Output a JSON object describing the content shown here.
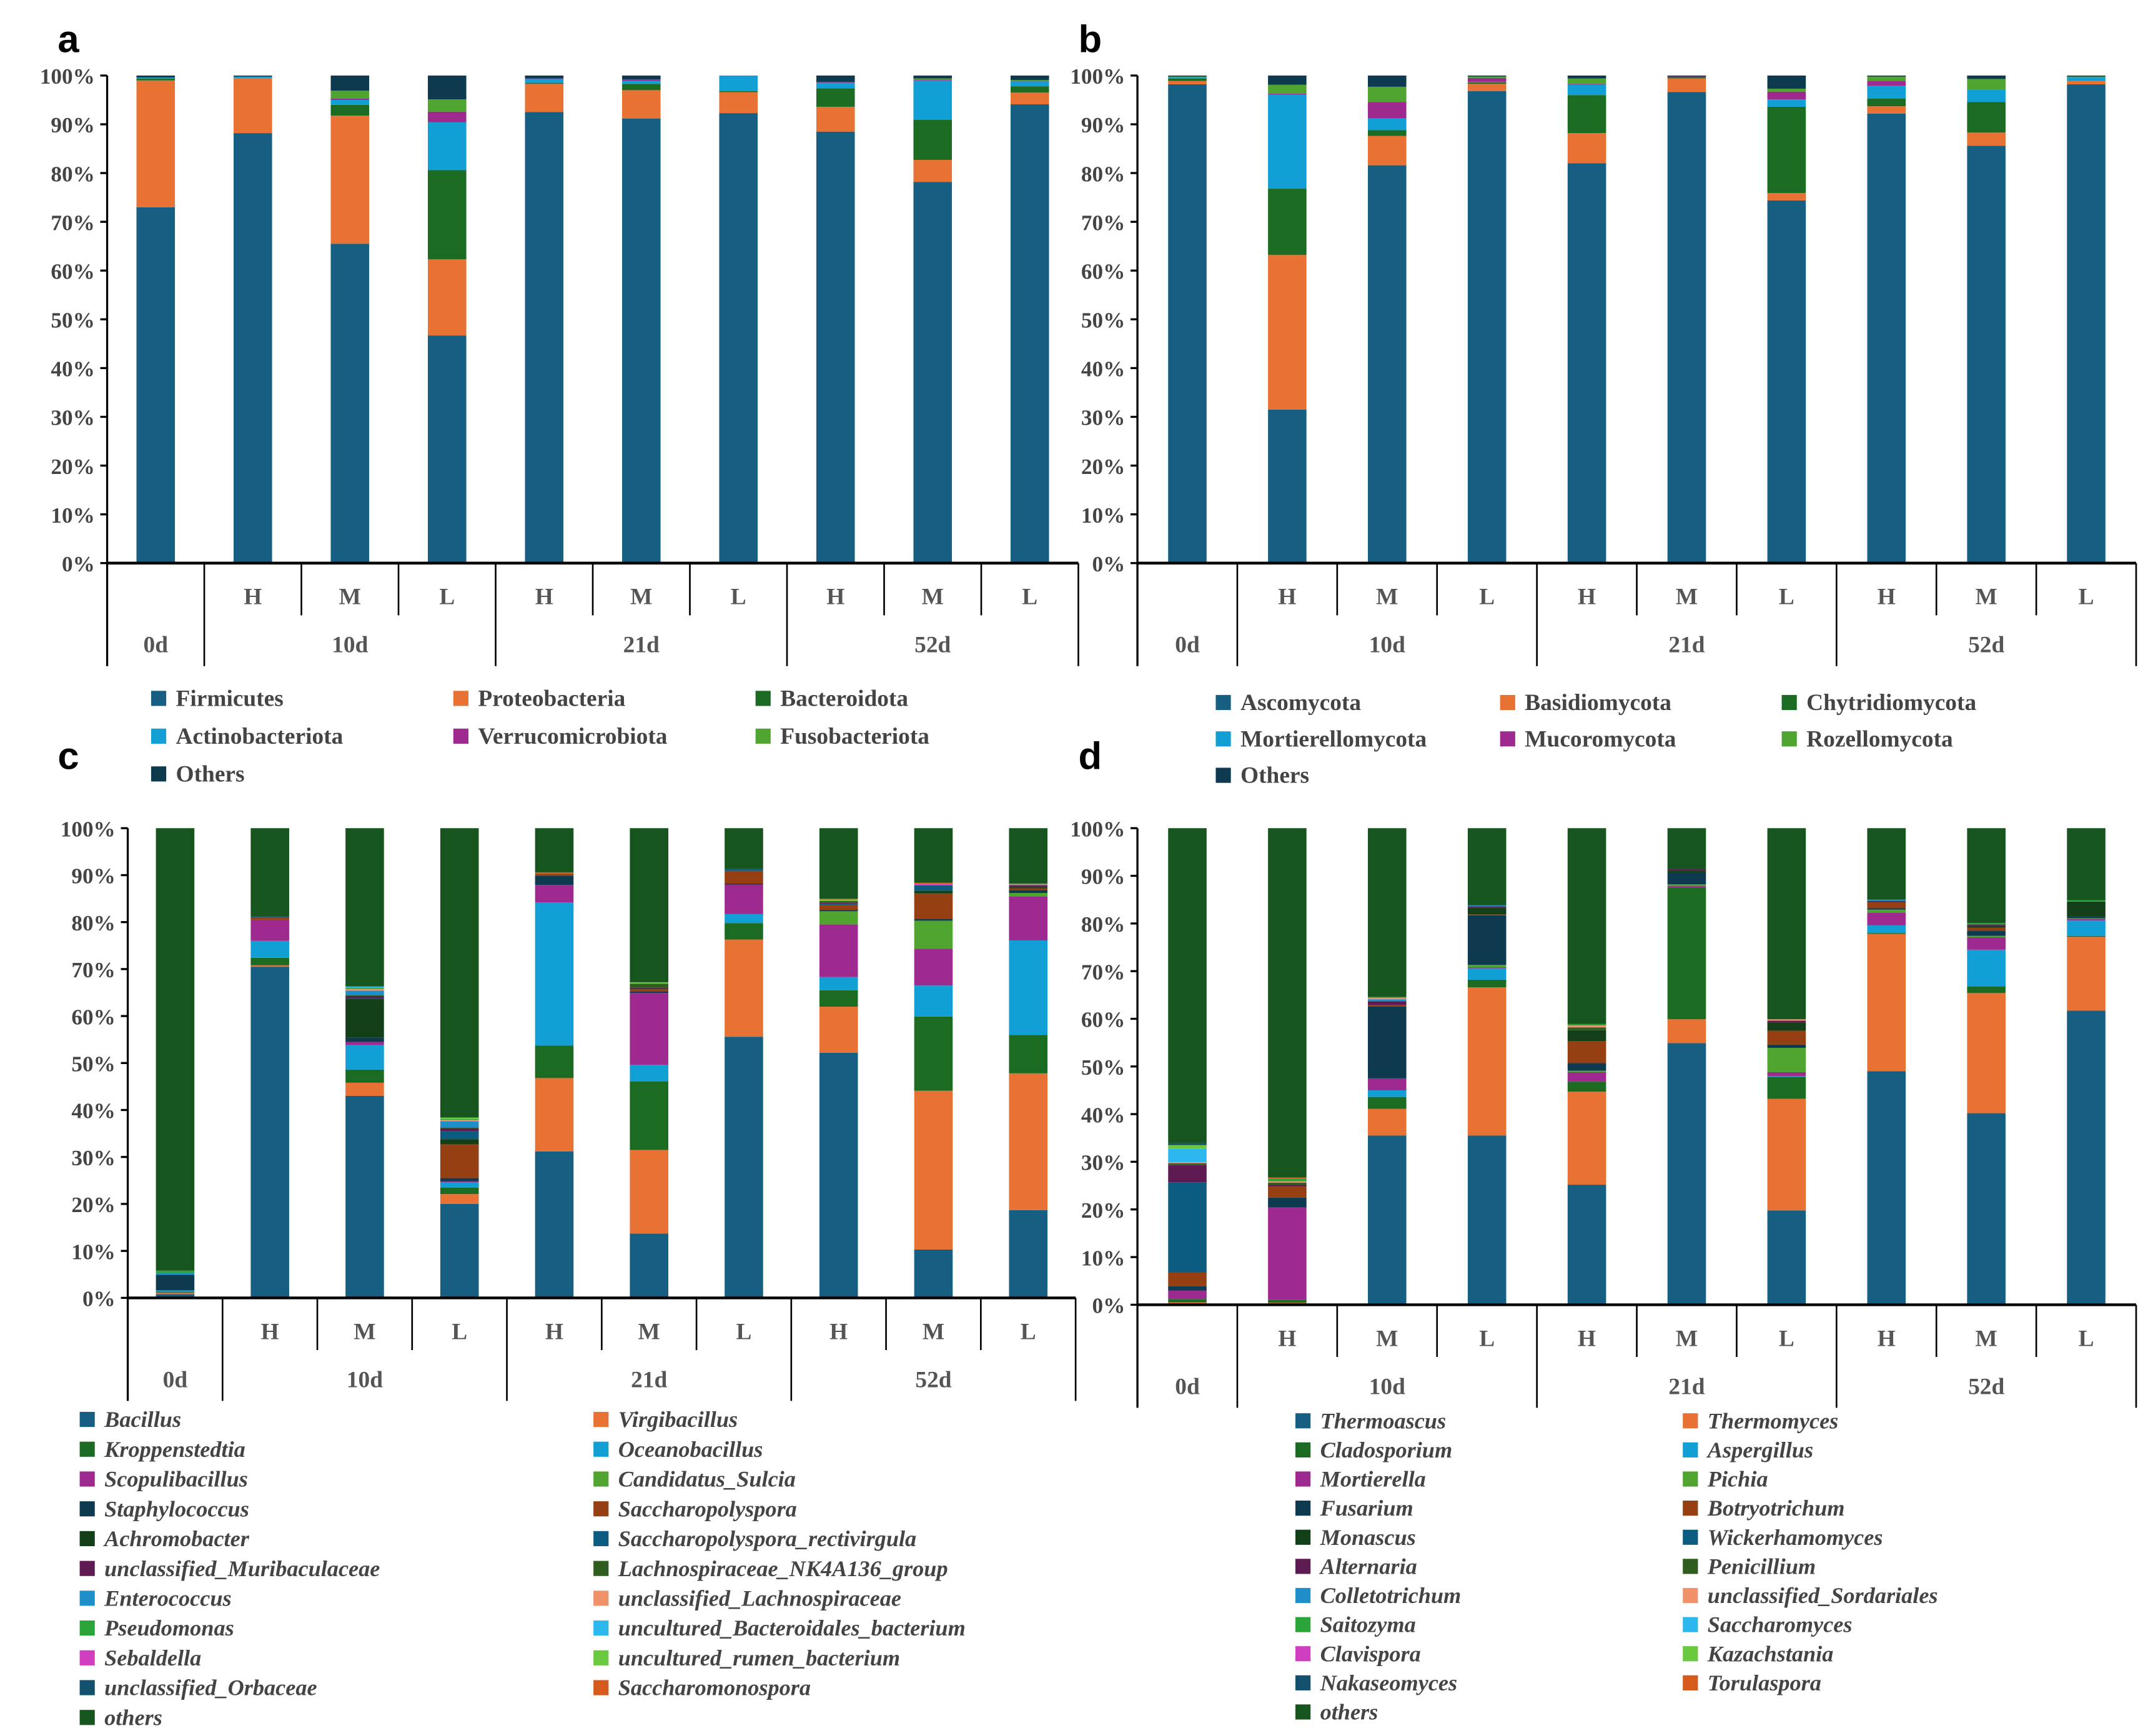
{
  "chart_data": [
    {
      "panel_label": "a",
      "type": "bar",
      "stacked": true,
      "ylim": [
        0,
        100
      ],
      "yticks": [
        "0%",
        "10%",
        "20%",
        "30%",
        "40%",
        "50%",
        "60%",
        "70%",
        "80%",
        "90%",
        "100%"
      ],
      "groups": [
        {
          "label": "0d",
          "subs": [
            ""
          ]
        },
        {
          "label": "10d",
          "subs": [
            "H",
            "M",
            "L"
          ]
        },
        {
          "label": "21d",
          "subs": [
            "H",
            "M",
            "L"
          ]
        },
        {
          "label": "52d",
          "subs": [
            "H",
            "M",
            "L"
          ]
        }
      ],
      "legend_italic": false,
      "series": [
        {
          "name": "Firmicutes",
          "color": "#175f82",
          "values": [
            73,
            88.2,
            65.5,
            46.7,
            92.5,
            91.2,
            92.3,
            88.5,
            78.2,
            94.1
          ]
        },
        {
          "name": "Proteobacteria",
          "color": "#e87233",
          "values": [
            26,
            11.3,
            26.3,
            15.6,
            5.8,
            5.8,
            4.3,
            5.1,
            4.5,
            2.4
          ]
        },
        {
          "name": "Bacteroidota",
          "color": "#1b6b23",
          "values": [
            0.4,
            0,
            2.2,
            18.3,
            0.2,
            1.3,
            0.2,
            3.8,
            8.2,
            1.3
          ]
        },
        {
          "name": "Actinobacteriota",
          "color": "#119fd6",
          "values": [
            0.2,
            0.3,
            1,
            9.8,
            0.8,
            0.6,
            3.2,
            1.1,
            8.1,
            1
          ]
        },
        {
          "name": "Verrucomicrobiota",
          "color": "#9f2a8f",
          "values": [
            0,
            0,
            0.3,
            2.2,
            0.1,
            0.3,
            0,
            0.2,
            0.2,
            0.1
          ]
        },
        {
          "name": "Fusobacteriota",
          "color": "#4fa52f",
          "values": [
            0,
            0,
            1.6,
            2.5,
            0,
            0,
            0,
            0,
            0.2,
            0.2
          ]
        },
        {
          "name": "Others",
          "color": "#0e3a50",
          "values": [
            0.4,
            0.2,
            3.1,
            4.9,
            0.6,
            0.8,
            0,
            1.3,
            0.6,
            0.9
          ]
        }
      ]
    },
    {
      "panel_label": "b",
      "type": "bar",
      "stacked": true,
      "ylim": [
        0,
        100
      ],
      "yticks": [
        "0%",
        "10%",
        "20%",
        "30%",
        "40%",
        "50%",
        "60%",
        "70%",
        "80%",
        "90%",
        "100%"
      ],
      "groups": [
        {
          "label": "0d",
          "subs": [
            ""
          ]
        },
        {
          "label": "10d",
          "subs": [
            "H",
            "M",
            "L"
          ]
        },
        {
          "label": "21d",
          "subs": [
            "H",
            "M",
            "L"
          ]
        },
        {
          "label": "52d",
          "subs": [
            "H",
            "M",
            "L"
          ]
        }
      ],
      "legend_italic": false,
      "series": [
        {
          "name": "Ascomycota",
          "color": "#175f82",
          "values": [
            98.2,
            31.5,
            81.6,
            96.8,
            82,
            96.6,
            74.4,
            92.2,
            85.6,
            98.2
          ]
        },
        {
          "name": "Basidiomycota",
          "color": "#e87233",
          "values": [
            0.7,
            31.7,
            6,
            1.5,
            6.2,
            2.8,
            1.5,
            1.5,
            2.7,
            0.7
          ]
        },
        {
          "name": "Chytridiomycota",
          "color": "#1b6b23",
          "values": [
            0.5,
            13.6,
            1.2,
            0.3,
            7.8,
            0.2,
            17.7,
            1.6,
            6.3,
            0
          ]
        },
        {
          "name": "Mortierellomycota",
          "color": "#119fd6",
          "values": [
            0.2,
            19.3,
            2.4,
            0.1,
            2.1,
            0,
            1.5,
            2.6,
            2.5,
            0.7
          ]
        },
        {
          "name": "Mucoromycota",
          "color": "#9f2a8f",
          "values": [
            0,
            0.2,
            3.4,
            0.8,
            0.2,
            0.2,
            1.6,
            1,
            0,
            0
          ]
        },
        {
          "name": "Rozellomycota",
          "color": "#4fa52f",
          "values": [
            0.2,
            1.8,
            3.1,
            0.3,
            1.1,
            0,
            0.6,
            0.9,
            2.2,
            0.2
          ]
        },
        {
          "name": "Others",
          "color": "#0e3a50",
          "values": [
            0.2,
            1.9,
            2.3,
            0.2,
            0.6,
            0.2,
            2.7,
            0.2,
            0.7,
            0.2
          ]
        }
      ]
    },
    {
      "panel_label": "c",
      "type": "bar",
      "stacked": true,
      "ylim": [
        0,
        100
      ],
      "yticks": [
        "0%",
        "10%",
        "20%",
        "30%",
        "40%",
        "50%",
        "60%",
        "70%",
        "80%",
        "90%",
        "100%"
      ],
      "groups": [
        {
          "label": "0d",
          "subs": [
            ""
          ]
        },
        {
          "label": "10d",
          "subs": [
            "H",
            "M",
            "L"
          ]
        },
        {
          "label": "21d",
          "subs": [
            "H",
            "M",
            "L"
          ]
        },
        {
          "label": "52d",
          "subs": [
            "H",
            "M",
            "L"
          ]
        }
      ],
      "legend_italic": true,
      "series": [
        {
          "name": "Bacillus",
          "color": "#175f82",
          "values": [
            0.8,
            70.5,
            43,
            20,
            31.2,
            13.7,
            55.6,
            52.2,
            10.3,
            18.7
          ]
        },
        {
          "name": "Virgibacillus",
          "color": "#e87233",
          "values": [
            0.3,
            0.3,
            2.8,
            2.1,
            15.6,
            17.8,
            20.7,
            9.8,
            33.8,
            29.1
          ]
        },
        {
          "name": "Kroppenstedtia",
          "color": "#1b6b23",
          "values": [
            0.2,
            1.6,
            2.8,
            1.4,
            6.9,
            14.6,
            3.5,
            3.5,
            15.8,
            8.2
          ]
        },
        {
          "name": "Oceanobacillus",
          "color": "#119fd6",
          "values": [
            0.3,
            3.6,
            5.2,
            1.1,
            30.5,
            3.5,
            1.9,
            2.8,
            6.6,
            20.1
          ]
        },
        {
          "name": "Scopulibacillus",
          "color": "#9f2a8f",
          "values": [
            0,
            4.5,
            0.7,
            0.2,
            3.7,
            15.3,
            6.3,
            11.2,
            7.8,
            9.4
          ]
        },
        {
          "name": "Candidatus_Sulcia",
          "color": "#4fa52f",
          "values": [
            0,
            0,
            0,
            0,
            0,
            0,
            0,
            2.8,
            6,
            0.7
          ]
        },
        {
          "name": "Staphylococcus",
          "color": "#0e3a50",
          "values": [
            3.3,
            0,
            0.9,
            0.7,
            2,
            0.3,
            0.2,
            0.3,
            0.4,
            0.6
          ]
        },
        {
          "name": "Saccharopolyspora",
          "color": "#963f12",
          "values": [
            0,
            0.5,
            0,
            7.2,
            0.4,
            0.5,
            2.7,
            1,
            5.4,
            0.4
          ]
        },
        {
          "name": "Achromobacter",
          "color": "#123f18",
          "values": [
            0,
            0,
            8.2,
            1.1,
            0,
            0.2,
            0,
            0,
            0.6,
            0.3
          ]
        },
        {
          "name": "Saccharopolyspora_rectivirgula",
          "color": "#0b5c80",
          "values": [
            0,
            0,
            0.2,
            1.7,
            0,
            0,
            0.4,
            0.3,
            1.1,
            0
          ]
        },
        {
          "name": "unclassified_Muribaculaceae",
          "color": "#5e1b52",
          "values": [
            0,
            0,
            0.4,
            0.6,
            0,
            0.2,
            0,
            0.2,
            0,
            0.3
          ]
        },
        {
          "name": "Lachnospiraceae_NK4A136_group",
          "color": "#2e5d1f",
          "values": [
            0,
            0,
            0.2,
            0.2,
            0,
            0.8,
            0,
            0.4,
            0,
            0
          ]
        },
        {
          "name": "Enterococcus",
          "color": "#1e8fc8",
          "values": [
            0.4,
            0,
            1,
            1.3,
            0,
            0,
            0,
            0,
            0,
            0
          ]
        },
        {
          "name": "unclassified_Lachnospiraceae",
          "color": "#f0916a",
          "values": [
            0,
            0,
            0.4,
            0.3,
            0,
            0,
            0,
            0,
            0,
            0
          ]
        },
        {
          "name": "Pseudomonas",
          "color": "#2ba43a",
          "values": [
            0.5,
            0,
            0.2,
            0.2,
            0,
            0,
            0,
            0,
            0,
            0
          ]
        },
        {
          "name": "uncultured_Bacteroidales_bacterium",
          "color": "#2cb8ee",
          "values": [
            0,
            0,
            0.3,
            0,
            0,
            0,
            0,
            0,
            0,
            0
          ]
        },
        {
          "name": "Sebaldella",
          "color": "#d03fbf",
          "values": [
            0,
            0,
            0,
            0,
            0,
            0,
            0,
            0,
            0.3,
            0.2
          ]
        },
        {
          "name": "uncultured_rumen_bacterium",
          "color": "#6ac93f",
          "values": [
            0,
            0,
            0,
            0.3,
            0,
            0.3,
            0,
            0.3,
            0,
            0.2
          ]
        },
        {
          "name": "unclassified_Orbaceae",
          "color": "#13506e",
          "values": [
            0,
            0.2,
            0,
            0,
            0,
            0,
            0,
            0,
            0,
            0
          ]
        },
        {
          "name": "Saccharomonospora",
          "color": "#d65a1c",
          "values": [
            0,
            0,
            0,
            0,
            0.3,
            0,
            0,
            0.2,
            0.3,
            0
          ]
        },
        {
          "name": "others",
          "color": "#17551f",
          "values": [
            94.2,
            18.8,
            33.7,
            61.6,
            9.4,
            32.8,
            8.7,
            15,
            11.6,
            11.8
          ]
        }
      ]
    },
    {
      "panel_label": "d",
      "type": "bar",
      "stacked": true,
      "ylim": [
        0,
        100
      ],
      "yticks": [
        "0%",
        "10%",
        "20%",
        "30%",
        "40%",
        "50%",
        "60%",
        "70%",
        "80%",
        "90%",
        "100%"
      ],
      "groups": [
        {
          "label": "0d",
          "subs": [
            ""
          ]
        },
        {
          "label": "10d",
          "subs": [
            "H",
            "M",
            "L"
          ]
        },
        {
          "label": "21d",
          "subs": [
            "H",
            "M",
            "L"
          ]
        },
        {
          "label": "52d",
          "subs": [
            "H",
            "M",
            "L"
          ]
        }
      ],
      "legend_italic": true,
      "series": [
        {
          "name": "Thermoascus",
          "color": "#175f82",
          "values": [
            0.2,
            0.2,
            35.5,
            35.5,
            25.2,
            54.9,
            19.8,
            49,
            40.2,
            61.7
          ]
        },
        {
          "name": "Thermomyces",
          "color": "#e87233",
          "values": [
            0.3,
            0.2,
            5.6,
            31.1,
            19.5,
            5,
            23.4,
            28.8,
            25.2,
            15.5
          ]
        },
        {
          "name": "Cladosporium",
          "color": "#1b6b23",
          "values": [
            0.7,
            0.6,
            2.5,
            1.6,
            2.1,
            27.7,
            4.6,
            0.2,
            1.4,
            0.2
          ]
        },
        {
          "name": "Aspergillus",
          "color": "#119fd6",
          "values": [
            0,
            0,
            1.4,
            2.4,
            0,
            0,
            0.2,
            1.6,
            7.7,
            3.2
          ]
        },
        {
          "name": "Mortierella",
          "color": "#9f2a8f",
          "values": [
            1.8,
            19.4,
            2.5,
            0.2,
            2,
            0.3,
            0.8,
            2.7,
            2.6,
            0.3
          ]
        },
        {
          "name": "Pichia",
          "color": "#4fa52f",
          "values": [
            0,
            0,
            0,
            0.5,
            0.3,
            0.3,
            5.1,
            0.6,
            0.3,
            0.2
          ]
        },
        {
          "name": "Fusarium",
          "color": "#0e3a50",
          "values": [
            0.9,
            2.1,
            15.1,
            10.4,
            1.6,
            2.4,
            0.7,
            0.3,
            1.1,
            0.4
          ]
        },
        {
          "name": "Botryotrichum",
          "color": "#963f12",
          "values": [
            2.9,
            2.3,
            0.3,
            0.2,
            4.6,
            0,
            2.9,
            1.3,
            0.6,
            0
          ]
        },
        {
          "name": "Monascus",
          "color": "#123f18",
          "values": [
            0,
            0,
            0,
            1.4,
            2.3,
            0.5,
            1.7,
            0,
            0.4,
            3.1
          ]
        },
        {
          "name": "Wickerhamomyces",
          "color": "#0b5c80",
          "values": [
            18.9,
            0,
            0,
            0,
            0,
            0,
            0,
            0,
            0,
            0
          ]
        },
        {
          "name": "Alternaria",
          "color": "#5e1b52",
          "values": [
            3.6,
            0.4,
            0.8,
            0.3,
            0,
            0.4,
            0.4,
            0.2,
            0.3,
            0
          ]
        },
        {
          "name": "Penicillium",
          "color": "#2e5d1f",
          "values": [
            0.4,
            0.4,
            0,
            0,
            0.6,
            0,
            0,
            0,
            0,
            0
          ]
        },
        {
          "name": "Colletotrichum",
          "color": "#1e8fc8",
          "values": [
            0,
            0,
            0.4,
            0.2,
            0,
            0,
            0,
            0.3,
            0,
            0
          ]
        },
        {
          "name": "unclassified_Sordariales",
          "color": "#f0916a",
          "values": [
            0.2,
            0.3,
            0.3,
            0,
            0.4,
            0,
            0.3,
            0,
            0,
            0
          ]
        },
        {
          "name": "Saitozyma",
          "color": "#2ba43a",
          "values": [
            0,
            0.6,
            0.2,
            0,
            0.3,
            0,
            0,
            0,
            0.3,
            0.3
          ]
        },
        {
          "name": "Saccharomyces",
          "color": "#2cb8ee",
          "values": [
            2.8,
            0,
            0,
            0,
            0,
            0,
            0,
            0,
            0,
            0
          ]
        },
        {
          "name": "Clavispora",
          "color": "#d03fbf",
          "values": [
            0,
            0,
            0,
            0,
            0,
            0,
            0,
            0,
            0,
            0
          ]
        },
        {
          "name": "Kazachstania",
          "color": "#6ac93f",
          "values": [
            0.8,
            0,
            0,
            0,
            0,
            0,
            0,
            0,
            0,
            0
          ]
        },
        {
          "name": "Nakaseomyces",
          "color": "#13506e",
          "values": [
            0.4,
            0,
            0,
            0,
            0,
            0,
            0,
            0,
            0,
            0
          ]
        },
        {
          "name": "Torulaspora",
          "color": "#d65a1c",
          "values": [
            0,
            0.2,
            0,
            0,
            0,
            0,
            0,
            0,
            0,
            0
          ]
        },
        {
          "name": "others",
          "color": "#17551f",
          "values": [
            66.1,
            73.3,
            35.4,
            16.2,
            41.1,
            8.5,
            40.1,
            15,
            19.9,
            15.1
          ]
        }
      ]
    }
  ]
}
